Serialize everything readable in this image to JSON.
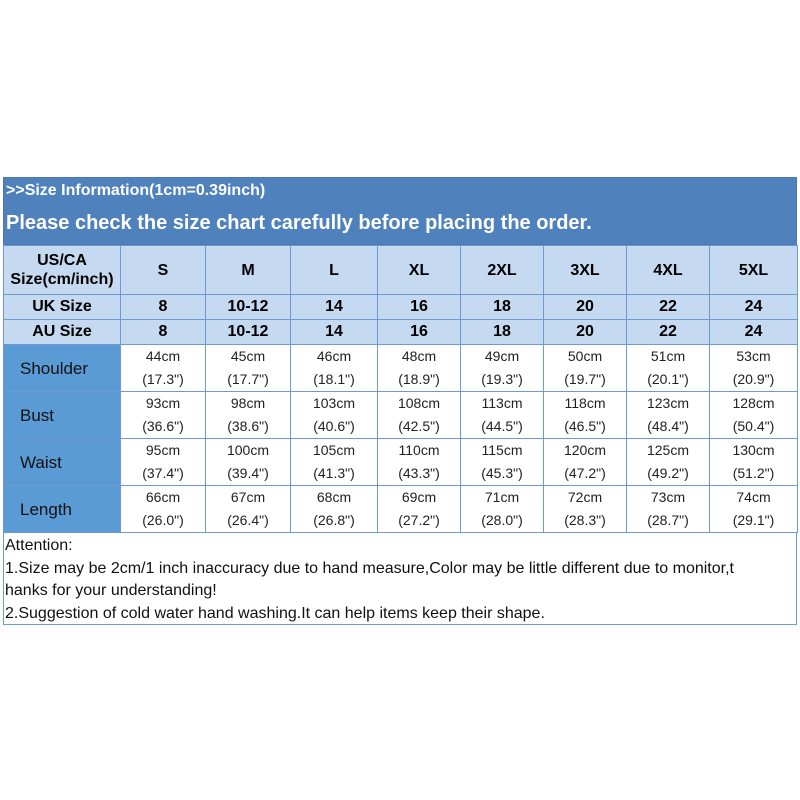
{
  "banner": {
    "line1": ">>Size Information(1cm=0.39inch)",
    "line2": "Please check the size chart carefully before placing the order."
  },
  "colors": {
    "banner": "#4f81bd",
    "size_rows": "#c5d9f1",
    "label_column": "#5b9bd5"
  },
  "table": {
    "size_header": "US/CA Size(cm/inch)",
    "sizes": [
      "S",
      "M",
      "L",
      "XL",
      "2XL",
      "3XL",
      "4XL",
      "5XL"
    ],
    "uk_label": "UK Size",
    "uk": [
      "8",
      "10-12",
      "14",
      "16",
      "18",
      "20",
      "22",
      "24"
    ],
    "au_label": "AU Size",
    "au": [
      "8",
      "10-12",
      "14",
      "16",
      "18",
      "20",
      "22",
      "24"
    ],
    "rows": [
      {
        "label": "Shoulder",
        "cm": [
          "44cm",
          "45cm",
          "46cm",
          "48cm",
          "49cm",
          "50cm",
          "51cm",
          "53cm"
        ],
        "inch": [
          "(17.3\")",
          "(17.7\")",
          "(18.1\")",
          "(18.9\")",
          "(19.3\")",
          "(19.7\")",
          "(20.1\")",
          "(20.9\")"
        ]
      },
      {
        "label": "Bust",
        "cm": [
          "93cm",
          "98cm",
          "103cm",
          "108cm",
          "113cm",
          "118cm",
          "123cm",
          "128cm"
        ],
        "inch": [
          "(36.6\")",
          "(38.6\")",
          "(40.6\")",
          "(42.5\")",
          "(44.5\")",
          "(46.5\")",
          "(48.4\")",
          "(50.4\")"
        ]
      },
      {
        "label": "Waist",
        "cm": [
          "95cm",
          "100cm",
          "105cm",
          "110cm",
          "115cm",
          "120cm",
          "125cm",
          "130cm"
        ],
        "inch": [
          "(37.4\")",
          "(39.4\")",
          "(41.3\")",
          "(43.3\")",
          "(45.3\")",
          "(47.2\")",
          "(49.2\")",
          "(51.2\")"
        ]
      },
      {
        "label": "Length",
        "cm": [
          "66cm",
          "67cm",
          "68cm",
          "69cm",
          "71cm",
          "72cm",
          "73cm",
          "74cm"
        ],
        "inch": [
          "(26.0\")",
          "(26.4\")",
          "(26.8\")",
          "(27.2\")",
          "(28.0\")",
          "(28.3\")",
          "(28.7\")",
          "(29.1\")"
        ]
      }
    ]
  },
  "attention": {
    "title": "Attention:",
    "line1": "1.Size may be 2cm/1 inch inaccuracy due to hand measure,Color may be little different due to monitor,t",
    "line2": "hanks for your understanding!",
    "line3": "2.Suggestion of cold water hand washing.It can help items keep their shape."
  }
}
